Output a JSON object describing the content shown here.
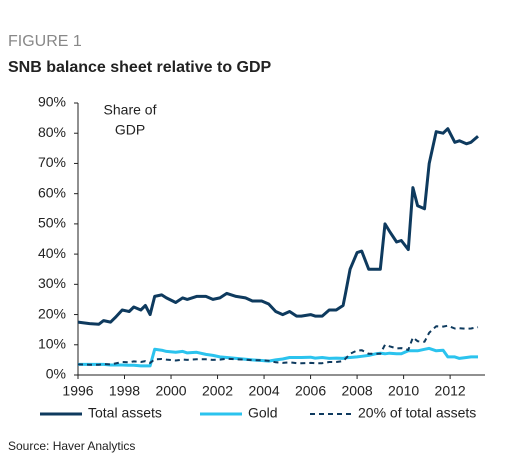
{
  "chart_data": {
    "type": "line",
    "figure_label": "FIGURE 1",
    "title": "SNB balance sheet relative to GDP",
    "annotation": [
      "Share of",
      "GDP"
    ],
    "source": "Source: Haver Analytics",
    "x": [
      1996.0,
      1996.5,
      1996.9,
      1997.1,
      1997.4,
      1997.6,
      1997.9,
      1998.2,
      1998.4,
      1998.7,
      1998.9,
      1999.1,
      1999.3,
      1999.6,
      1999.8,
      2000.2,
      2000.5,
      2000.7,
      2001.1,
      2001.5,
      2001.8,
      2002.1,
      2002.4,
      2002.8,
      2003.2,
      2003.5,
      2003.9,
      2004.2,
      2004.5,
      2004.8,
      2005.1,
      2005.4,
      2005.6,
      2006.0,
      2006.2,
      2006.5,
      2006.8,
      2007.1,
      2007.4,
      2007.5,
      2007.7,
      2008.0,
      2008.2,
      2008.5,
      2008.8,
      2009.0,
      2009.2,
      2009.4,
      2009.7,
      2009.9,
      2010.2,
      2010.4,
      2010.6,
      2010.9,
      2011.1,
      2011.4,
      2011.7,
      2011.9,
      2012.2,
      2012.4,
      2012.7,
      2012.9,
      2013.2
    ],
    "series": [
      {
        "name": "Total assets",
        "color": "#0e3a5e",
        "line_style": "solid",
        "values": [
          17.5,
          17,
          16.8,
          18,
          17.5,
          19,
          21.5,
          21,
          22.5,
          21.5,
          23,
          20,
          26,
          26.5,
          25.5,
          24,
          25.5,
          25,
          26,
          26,
          25,
          25.5,
          27,
          26,
          25.5,
          24.5,
          24.5,
          23.5,
          21,
          20,
          21,
          19.5,
          19.5,
          20,
          19.5,
          19.5,
          21.5,
          21.5,
          23,
          27,
          35,
          40.5,
          41,
          35,
          35,
          35,
          50,
          47.5,
          44,
          44.5,
          41.5,
          62,
          56,
          55,
          70,
          80.5,
          80,
          81.5,
          77,
          77.5,
          76.5,
          77,
          79
        ]
      },
      {
        "name": "Gold",
        "color": "#2bc3ee",
        "line_style": "solid",
        "values": [
          3.5,
          3.5,
          3.5,
          3.5,
          3.3,
          3.3,
          3.3,
          3.2,
          3.2,
          3.0,
          3.0,
          3.0,
          8.5,
          8.2,
          7.8,
          7.5,
          7.8,
          7.3,
          7.5,
          6.8,
          6.5,
          6.0,
          5.8,
          5.5,
          5.2,
          5.0,
          4.8,
          4.6,
          5.0,
          5.3,
          5.8,
          5.8,
          5.8,
          5.9,
          5.6,
          5.8,
          5.5,
          5.6,
          5.5,
          5.7,
          5.8,
          6.0,
          6.2,
          6.5,
          7.0,
          7.2,
          7.0,
          7.2,
          7.0,
          7.0,
          8.0,
          8.0,
          8.0,
          8.5,
          8.8,
          8.0,
          8.2,
          6.0,
          6.0,
          5.5,
          5.8,
          6.0,
          6.0
        ]
      },
      {
        "name": "20% of total assets",
        "color": "#0e3a5e",
        "line_style": "dashed",
        "values": [
          3.5,
          3.4,
          3.4,
          3.6,
          3.5,
          3.8,
          4.3,
          4.2,
          4.5,
          4.3,
          4.6,
          4.0,
          5.2,
          5.3,
          5.1,
          4.8,
          5.1,
          5.0,
          5.2,
          5.2,
          5.0,
          5.1,
          5.4,
          5.2,
          5.1,
          4.9,
          4.9,
          4.7,
          4.2,
          4.0,
          4.2,
          3.9,
          3.9,
          4.0,
          3.9,
          3.9,
          4.3,
          4.3,
          4.6,
          5.4,
          7.0,
          8.1,
          8.2,
          7.0,
          7.0,
          7.0,
          10.0,
          9.5,
          8.8,
          8.9,
          8.3,
          12.4,
          11.2,
          11.0,
          14.0,
          16.1,
          16.0,
          16.3,
          15.4,
          15.5,
          15.3,
          15.4,
          15.8
        ]
      }
    ],
    "xlim": [
      1996,
      2013.5
    ],
    "xticks": [
      1996,
      1998,
      2000,
      2002,
      2004,
      2006,
      2008,
      2010,
      2012
    ],
    "ylim": [
      0,
      90
    ],
    "yticks": [
      {
        "value": 0,
        "label": "0%"
      },
      {
        "value": 10,
        "label": "10%"
      },
      {
        "value": 20,
        "label": "20%"
      },
      {
        "value": 30,
        "label": "30%"
      },
      {
        "value": 40,
        "label": "40%"
      },
      {
        "value": 50,
        "label": "50%"
      },
      {
        "value": 60,
        "label": "60%"
      },
      {
        "value": 70,
        "label": "70%"
      },
      {
        "value": 80,
        "label": "80%"
      },
      {
        "value": 90,
        "label": "90%"
      }
    ],
    "grid": false
  }
}
